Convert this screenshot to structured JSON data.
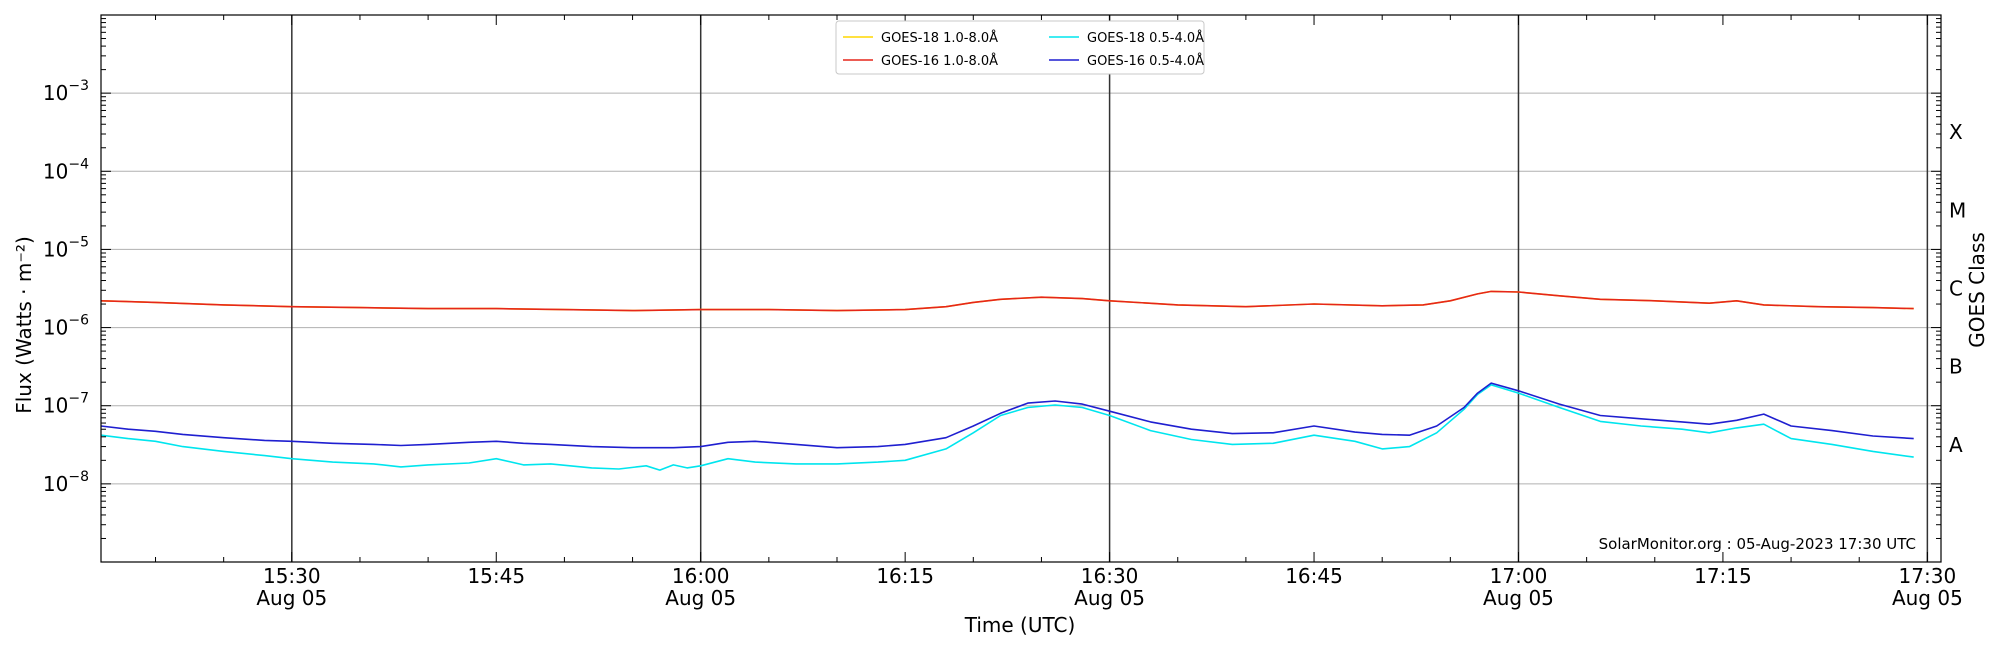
{
  "chart_data": {
    "type": "line",
    "title": "",
    "xlabel": "Time (UTC)",
    "ylabel": "Flux (Watts · m⁻²)",
    "ylabel_right": "GOES Class",
    "y_scale": "log",
    "ylim": [
      1e-09,
      0.01
    ],
    "xlim": [
      "2023-08-05T15:16",
      "2023-08-05T17:31"
    ],
    "x_unit": "UTC time (HH:MM), Aug 05",
    "y_ticks": [
      {
        "value": 1e-08,
        "base": "10",
        "exp": "−8"
      },
      {
        "value": 1e-07,
        "base": "10",
        "exp": "−7"
      },
      {
        "value": 1e-06,
        "base": "10",
        "exp": "−6"
      },
      {
        "value": 1e-05,
        "base": "10",
        "exp": "−5"
      },
      {
        "value": 0.0001,
        "base": "10",
        "exp": "−4"
      },
      {
        "value": 0.001,
        "base": "10",
        "exp": "−3"
      }
    ],
    "x_ticks": [
      {
        "time": "15:30",
        "label": "15:30",
        "sub": "Aug 05",
        "vline": true
      },
      {
        "time": "15:45",
        "label": "15:45",
        "sub": "",
        "vline": false
      },
      {
        "time": "16:00",
        "label": "16:00",
        "sub": "Aug 05",
        "vline": true
      },
      {
        "time": "16:15",
        "label": "16:15",
        "sub": "",
        "vline": false
      },
      {
        "time": "16:30",
        "label": "16:30",
        "sub": "Aug 05",
        "vline": true
      },
      {
        "time": "16:45",
        "label": "16:45",
        "sub": "",
        "vline": false
      },
      {
        "time": "17:00",
        "label": "17:00",
        "sub": "Aug 05",
        "vline": true
      },
      {
        "time": "17:15",
        "label": "17:15",
        "sub": "",
        "vline": false
      },
      {
        "time": "17:30",
        "label": "17:30",
        "sub": "Aug 05",
        "vline": true
      }
    ],
    "goes_classes": [
      {
        "label": "A",
        "value": 3.16e-08
      },
      {
        "label": "B",
        "value": 3.16e-07
      },
      {
        "label": "C",
        "value": 3.16e-06
      },
      {
        "label": "M",
        "value": 3.16e-05
      },
      {
        "label": "X",
        "value": 0.000316
      }
    ],
    "hgrid": true,
    "legend_position": "top-center",
    "series": [
      {
        "name": "GOES-18 1.0-8.0Å",
        "color": "#ffd700",
        "x": [
          "15:16",
          "15:20",
          "15:25",
          "15:30",
          "15:35",
          "15:40",
          "15:45",
          "15:50",
          "15:55",
          "16:00",
          "16:05",
          "16:10",
          "16:15",
          "16:18",
          "16:20",
          "16:22",
          "16:25",
          "16:28",
          "16:30",
          "16:35",
          "16:40",
          "16:45",
          "16:50",
          "16:53",
          "16:55",
          "16:57",
          "16:58",
          "17:00",
          "17:03",
          "17:06",
          "17:10",
          "17:14",
          "17:16",
          "17:18",
          "17:22",
          "17:26",
          "17:29"
        ],
        "values": [
          2.2e-06,
          2.1e-06,
          1.95e-06,
          1.85e-06,
          1.8e-06,
          1.75e-06,
          1.75e-06,
          1.7e-06,
          1.65e-06,
          1.7e-06,
          1.7e-06,
          1.65e-06,
          1.7e-06,
          1.85e-06,
          2.1e-06,
          2.3e-06,
          2.45e-06,
          2.35e-06,
          2.2e-06,
          1.95e-06,
          1.85e-06,
          2e-06,
          1.9e-06,
          1.95e-06,
          2.2e-06,
          2.7e-06,
          2.9e-06,
          2.85e-06,
          2.55e-06,
          2.3e-06,
          2.2e-06,
          2.05e-06,
          2.2e-06,
          1.95e-06,
          1.85e-06,
          1.8e-06,
          1.75e-06
        ]
      },
      {
        "name": "GOES-16 1.0-8.0Å",
        "color": "#e6261a",
        "x": [
          "15:16",
          "15:20",
          "15:25",
          "15:30",
          "15:35",
          "15:40",
          "15:45",
          "15:50",
          "15:55",
          "16:00",
          "16:05",
          "16:10",
          "16:15",
          "16:18",
          "16:20",
          "16:22",
          "16:25",
          "16:28",
          "16:30",
          "16:35",
          "16:40",
          "16:45",
          "16:50",
          "16:53",
          "16:55",
          "16:57",
          "16:58",
          "17:00",
          "17:03",
          "17:06",
          "17:10",
          "17:14",
          "17:16",
          "17:18",
          "17:22",
          "17:26",
          "17:29"
        ],
        "values": [
          2.2e-06,
          2.1e-06,
          1.95e-06,
          1.85e-06,
          1.8e-06,
          1.75e-06,
          1.75e-06,
          1.7e-06,
          1.65e-06,
          1.7e-06,
          1.7e-06,
          1.65e-06,
          1.7e-06,
          1.85e-06,
          2.1e-06,
          2.3e-06,
          2.45e-06,
          2.35e-06,
          2.2e-06,
          1.95e-06,
          1.85e-06,
          2e-06,
          1.9e-06,
          1.95e-06,
          2.2e-06,
          2.7e-06,
          2.9e-06,
          2.85e-06,
          2.55e-06,
          2.3e-06,
          2.2e-06,
          2.05e-06,
          2.2e-06,
          1.95e-06,
          1.85e-06,
          1.8e-06,
          1.75e-06
        ]
      },
      {
        "name": "GOES-18 0.5-4.0Å",
        "color": "#00e5ee",
        "x": [
          "15:16",
          "15:18",
          "15:20",
          "15:22",
          "15:25",
          "15:28",
          "15:30",
          "15:33",
          "15:36",
          "15:38",
          "15:40",
          "15:43",
          "15:45",
          "15:47",
          "15:49",
          "15:52",
          "15:54",
          "15:56",
          "15:57",
          "15:58",
          "15:59",
          "16:00",
          "16:02",
          "16:04",
          "16:07",
          "16:10",
          "16:13",
          "16:15",
          "16:18",
          "16:20",
          "16:22",
          "16:24",
          "16:26",
          "16:28",
          "16:30",
          "16:33",
          "16:36",
          "16:39",
          "16:42",
          "16:45",
          "16:48",
          "16:50",
          "16:52",
          "16:54",
          "16:56",
          "16:57",
          "16:58",
          "17:00",
          "17:03",
          "17:06",
          "17:09",
          "17:12",
          "17:14",
          "17:16",
          "17:18",
          "17:20",
          "17:23",
          "17:26",
          "17:29"
        ],
        "values": [
          4.2e-08,
          3.8e-08,
          3.5e-08,
          3e-08,
          2.6e-08,
          2.3e-08,
          2.1e-08,
          1.9e-08,
          1.8e-08,
          1.65e-08,
          1.75e-08,
          1.85e-08,
          2.1e-08,
          1.75e-08,
          1.8e-08,
          1.6e-08,
          1.55e-08,
          1.7e-08,
          1.5e-08,
          1.75e-08,
          1.6e-08,
          1.7e-08,
          2.1e-08,
          1.9e-08,
          1.8e-08,
          1.8e-08,
          1.9e-08,
          2e-08,
          2.8e-08,
          4.5e-08,
          7.5e-08,
          9.5e-08,
          1.02e-07,
          9.5e-08,
          7.5e-08,
          4.8e-08,
          3.7e-08,
          3.2e-08,
          3.3e-08,
          4.2e-08,
          3.5e-08,
          2.8e-08,
          3e-08,
          4.5e-08,
          9e-08,
          1.4e-07,
          1.85e-07,
          1.45e-07,
          9.5e-08,
          6.3e-08,
          5.5e-08,
          5e-08,
          4.5e-08,
          5.2e-08,
          5.8e-08,
          3.8e-08,
          3.2e-08,
          2.6e-08,
          2.2e-08
        ]
      },
      {
        "name": "GOES-16 0.5-4.0Å",
        "color": "#1f1fd0",
        "x": [
          "15:16",
          "15:18",
          "15:20",
          "15:22",
          "15:25",
          "15:28",
          "15:30",
          "15:33",
          "15:36",
          "15:38",
          "15:40",
          "15:43",
          "15:45",
          "15:47",
          "15:49",
          "15:52",
          "15:55",
          "15:58",
          "16:00",
          "16:02",
          "16:04",
          "16:07",
          "16:10",
          "16:13",
          "16:15",
          "16:18",
          "16:20",
          "16:22",
          "16:24",
          "16:26",
          "16:28",
          "16:30",
          "16:33",
          "16:36",
          "16:39",
          "16:42",
          "16:45",
          "16:48",
          "16:50",
          "16:52",
          "16:54",
          "16:56",
          "16:57",
          "16:58",
          "17:00",
          "17:03",
          "17:06",
          "17:09",
          "17:12",
          "17:14",
          "17:16",
          "17:18",
          "17:20",
          "17:23",
          "17:26",
          "17:29"
        ],
        "values": [
          5.5e-08,
          5e-08,
          4.7e-08,
          4.3e-08,
          3.9e-08,
          3.6e-08,
          3.5e-08,
          3.3e-08,
          3.2e-08,
          3.1e-08,
          3.2e-08,
          3.4e-08,
          3.5e-08,
          3.3e-08,
          3.2e-08,
          3e-08,
          2.9e-08,
          2.9e-08,
          3e-08,
          3.4e-08,
          3.5e-08,
          3.2e-08,
          2.9e-08,
          3e-08,
          3.2e-08,
          3.9e-08,
          5.5e-08,
          8e-08,
          1.08e-07,
          1.15e-07,
          1.05e-07,
          8.5e-08,
          6.2e-08,
          5e-08,
          4.4e-08,
          4.5e-08,
          5.5e-08,
          4.6e-08,
          4.3e-08,
          4.2e-08,
          5.5e-08,
          9.5e-08,
          1.45e-07,
          1.95e-07,
          1.55e-07,
          1.05e-07,
          7.5e-08,
          6.8e-08,
          6.2e-08,
          5.8e-08,
          6.5e-08,
          7.8e-08,
          5.5e-08,
          4.8e-08,
          4.1e-08,
          3.8e-08
        ]
      }
    ],
    "annotation": "SolarMonitor.org : 05-Aug-2023 17:30 UTC"
  }
}
